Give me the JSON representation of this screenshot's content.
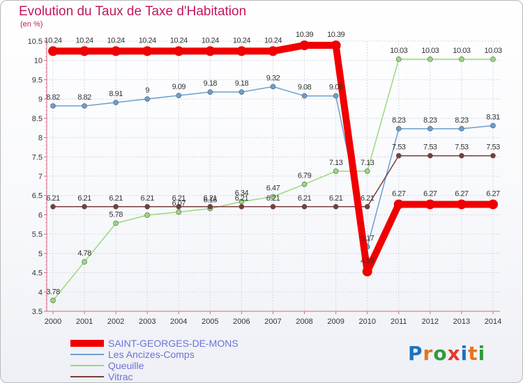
{
  "title": "Evolution du Taux de Taxe d'Habitation",
  "subtitle": "(en %)",
  "logo": {
    "text": "Proxiti",
    "letter_colors": [
      "#1e73be",
      "#e8731c",
      "#2e9d3a",
      "#e33b2e",
      "#1e73be",
      "#e8731c",
      "#2e9d3a"
    ]
  },
  "chart_data": {
    "type": "line",
    "title": "Evolution du Taux de Taxe d'Habitation",
    "ylabel": "(en %)",
    "xlabel": "",
    "x": [
      "2000",
      "2001",
      "2002",
      "2003",
      "2004",
      "2005",
      "2006",
      "2007",
      "2008",
      "2009",
      "2010",
      "2011",
      "2012",
      "2013",
      "2014"
    ],
    "ylim": [
      3.5,
      10.5
    ],
    "yticks": [
      3.5,
      4,
      4.5,
      5,
      5.5,
      6,
      6.5,
      7,
      7.5,
      8,
      8.5,
      9,
      9.5,
      10,
      10.5
    ],
    "yticklabels": [
      "3.5",
      "4",
      "4.5",
      "5",
      "5.5",
      "6",
      "6.5",
      "7",
      "7.5",
      "8",
      "8.5",
      "9",
      "9.5",
      "10",
      "10.5"
    ],
    "grid": true,
    "legend_position": "bottom-left",
    "series": [
      {
        "name": "SAINT-GEORGES-DE-MONS",
        "color": "#f00000",
        "bold": true,
        "values": [
          10.24,
          10.24,
          10.24,
          10.24,
          10.24,
          10.24,
          10.24,
          10.24,
          10.39,
          10.39,
          4.53,
          6.27,
          6.27,
          6.27,
          6.27
        ],
        "labels": [
          "10.24",
          "10.24",
          "10.24",
          "10.24",
          "10.24",
          "10.24",
          "10.24",
          "10.24",
          "10.39",
          "10.39",
          "4.53",
          "6.27",
          "6.27",
          "6.27",
          "6.27"
        ]
      },
      {
        "name": "Les Ancizes-Comps",
        "color": "#6a9fd0",
        "bold": false,
        "values": [
          8.82,
          8.82,
          8.91,
          9,
          9.09,
          9.18,
          9.18,
          9.32,
          9.08,
          9.08,
          5.17,
          8.23,
          8.23,
          8.23,
          8.31
        ],
        "labels": [
          "8.82",
          "8.82",
          "8.91",
          "9",
          "9.09",
          "9.18",
          "9.18",
          "9.32",
          "9.08",
          "9.08",
          "5.17",
          "8.23",
          "8.23",
          "8.23",
          "8.31"
        ]
      },
      {
        "name": "Queuille",
        "color": "#9ad97a",
        "bold": false,
        "values": [
          3.78,
          4.78,
          5.78,
          5.99,
          6.07,
          6.16,
          6.34,
          6.47,
          6.79,
          7.13,
          7.13,
          10.03,
          10.03,
          10.03,
          10.03
        ],
        "labels": [
          "3.78",
          "4.78",
          "5.78",
          "",
          "6.07",
          "6.16",
          "6.34",
          "6.47",
          "6.79",
          "7.13",
          "7.13",
          "10.03",
          "10.03",
          "10.03",
          "10.03"
        ]
      },
      {
        "name": "Vitrac",
        "color": "#7a3c3c",
        "bold": false,
        "values": [
          6.21,
          6.21,
          6.21,
          6.21,
          6.21,
          6.21,
          6.21,
          6.21,
          6.21,
          6.21,
          6.21,
          7.53,
          7.53,
          7.53,
          7.53
        ],
        "labels": [
          "6.21",
          "6.21",
          "6.21",
          "6.21",
          "6.21",
          "6.21",
          "6.21",
          "6.21",
          "6.21",
          "6.21",
          "6.21",
          "7.53",
          "7.53",
          "7.53",
          "7.53"
        ]
      }
    ]
  }
}
